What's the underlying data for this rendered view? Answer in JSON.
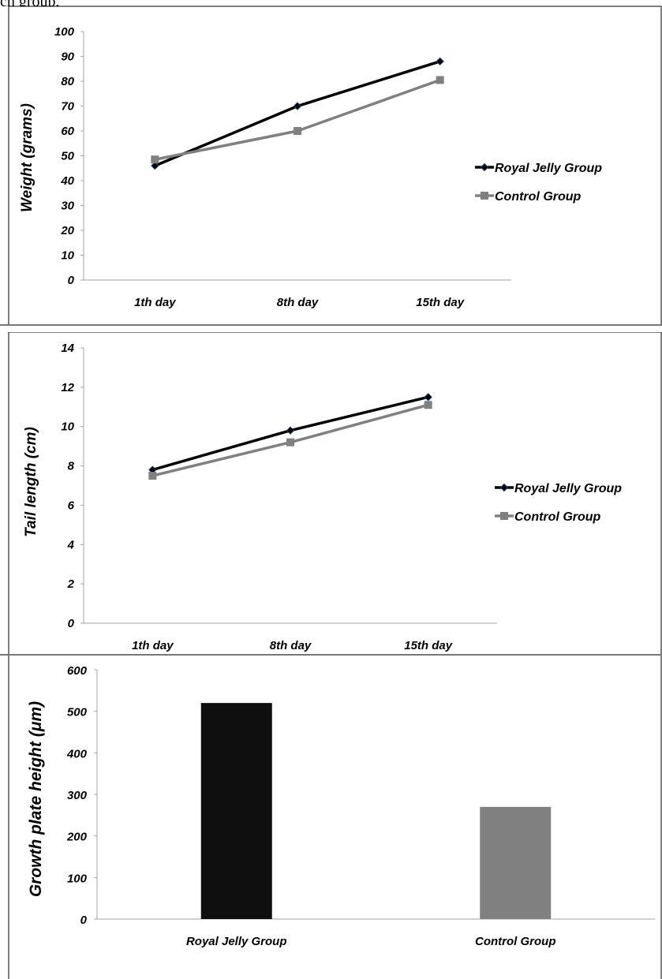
{
  "header_fragment": "ch group,",
  "chart_data": [
    {
      "type": "line",
      "ylabel": "Weight (grams)",
      "xlabel": "",
      "ylim": [
        0,
        100
      ],
      "yticks": [
        "0",
        "10",
        "20",
        "30",
        "40",
        "50",
        "60",
        "70",
        "80",
        "90",
        "100"
      ],
      "categories": [
        "1th day",
        "8th day",
        "15th day"
      ],
      "series": [
        {
          "name": "Royal Jelly Group",
          "values": [
            46,
            70,
            88
          ],
          "color": "#000000",
          "marker": "diamond"
        },
        {
          "name": "Control Group",
          "values": [
            48.5,
            60,
            80.5
          ],
          "color": "#808080",
          "marker": "square"
        }
      ],
      "legend": "right",
      "grid": false
    },
    {
      "type": "line",
      "ylabel": "Tail length (cm)",
      "xlabel": "",
      "ylim": [
        0,
        14
      ],
      "yticks": [
        "0",
        "2",
        "4",
        "6",
        "8",
        "10",
        "12",
        "14"
      ],
      "categories": [
        "1th day",
        "8th day",
        "15th day"
      ],
      "series": [
        {
          "name": "Royal Jelly Group",
          "values": [
            7.8,
            9.8,
            11.5
          ],
          "color": "#000000",
          "marker": "diamond"
        },
        {
          "name": "Control Group",
          "values": [
            7.5,
            9.2,
            11.1
          ],
          "color": "#808080",
          "marker": "square"
        }
      ],
      "legend": "right",
      "grid": false
    },
    {
      "type": "bar",
      "ylabel": "Growth plate height (μm)",
      "xlabel": "",
      "ylim": [
        0,
        600
      ],
      "yticks": [
        "0",
        "100",
        "200",
        "300",
        "400",
        "500",
        "600"
      ],
      "categories": [
        "Royal Jelly Group",
        "Control Group"
      ],
      "values": [
        520,
        270
      ],
      "colors": [
        "#0f0f0f",
        "#808080"
      ],
      "legend": "none",
      "grid": false
    }
  ]
}
